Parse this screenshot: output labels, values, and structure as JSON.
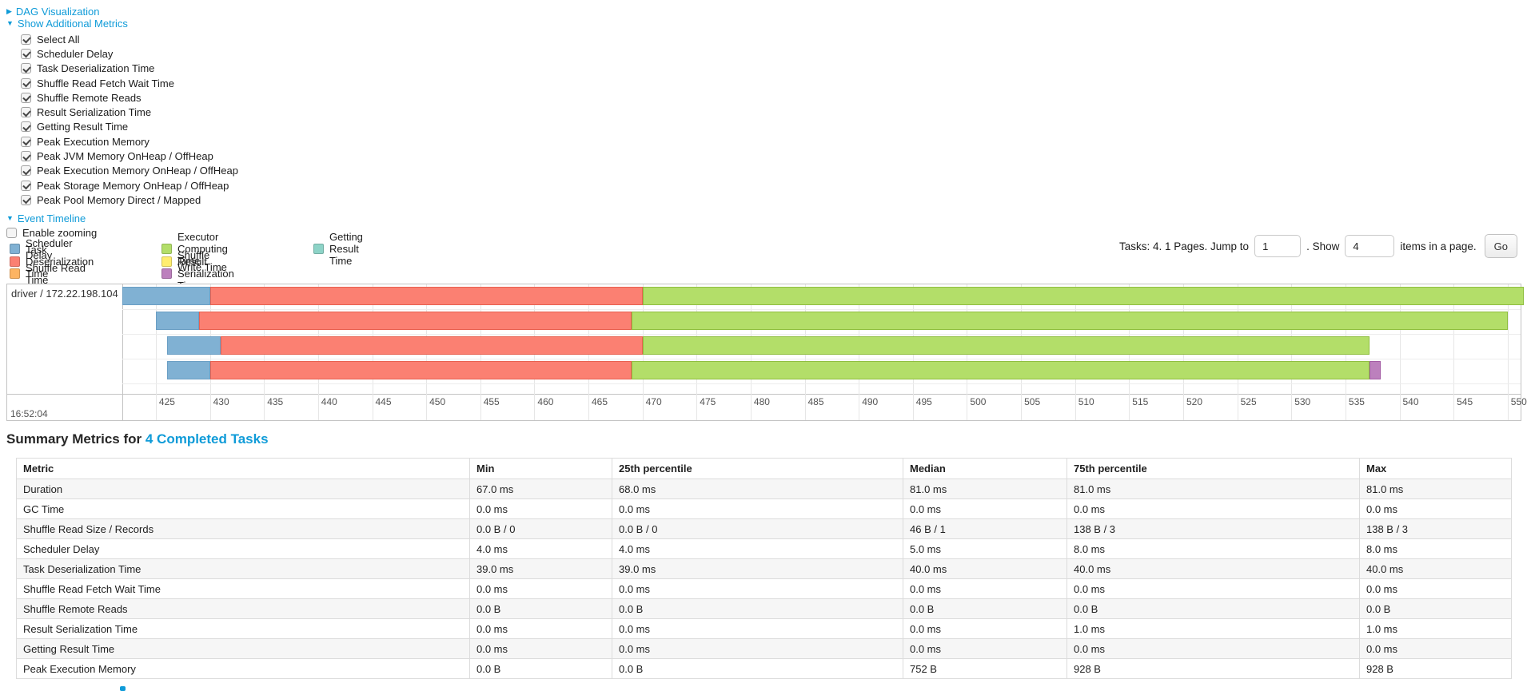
{
  "links": {
    "dag": "DAG Visualization",
    "metrics": "Show Additional Metrics",
    "event_timeline": "Event Timeline"
  },
  "icons": {
    "collapsed": "▶",
    "expanded": "▼"
  },
  "metric_checkboxes": [
    "Select All",
    "Scheduler Delay",
    "Task Deserialization Time",
    "Shuffle Read Fetch Wait Time",
    "Shuffle Remote Reads",
    "Result Serialization Time",
    "Getting Result Time",
    "Peak Execution Memory",
    "Peak JVM Memory OnHeap / OffHeap",
    "Peak Execution Memory OnHeap / OffHeap",
    "Peak Storage Memory OnHeap / OffHeap",
    "Peak Pool Memory Direct / Mapped"
  ],
  "enable_zooming_label": "Enable zooming",
  "pagination": {
    "prefix": "Tasks: 4. 1 Pages. Jump to",
    "jump_value": "1",
    "mid": ". Show",
    "show_value": "4",
    "suffix": "items in a page.",
    "go_label": "Go"
  },
  "colors": {
    "link": "#0f9bd8",
    "scheduler_delay": {
      "fill": "#80B1D3",
      "border": "#6A9EC4"
    },
    "task_deserialization": {
      "fill": "#FB8072",
      "border": "#E8604F"
    },
    "shuffle_read": {
      "fill": "#FDB462",
      "border": "#F09A3C"
    },
    "executor_computing": {
      "fill": "#B3DE69",
      "border": "#8FBE3F"
    },
    "shuffle_write": {
      "fill": "#FFED6F",
      "border": "#E8D84E"
    },
    "result_serialization": {
      "fill": "#BC80BD",
      "border": "#A35BA4"
    },
    "getting_result": {
      "fill": "#8DD3C7",
      "border": "#6BBFB0"
    }
  },
  "legend": [
    {
      "label": "Scheduler Delay",
      "key": "scheduler_delay"
    },
    {
      "label": "Task Deserialization Time",
      "key": "task_deserialization"
    },
    {
      "label": "Shuffle Read Time",
      "key": "shuffle_read"
    },
    {
      "label": "Executor Computing Time",
      "key": "executor_computing"
    },
    {
      "label": "Shuffle Write Time",
      "key": "shuffle_write"
    },
    {
      "label": "Result Serialization Time",
      "key": "result_serialization"
    },
    {
      "label": "Getting Result Time",
      "key": "getting_result"
    }
  ],
  "chart_data": {
    "type": "timeline",
    "title": "Event Timeline",
    "group_label": "driver / 172.22.198.104",
    "axis": {
      "min": 421.9,
      "max": 551.2,
      "tick_start": 425,
      "tick_step": 5,
      "tick_end": 550,
      "major_label": "16:52:04",
      "unit": "milliseconds after 16:52:04"
    },
    "tasks": [
      {
        "segments": [
          {
            "key": "scheduler_delay",
            "start": 421.9,
            "end": 430.0
          },
          {
            "key": "task_deserialization",
            "start": 430.0,
            "end": 470.0
          },
          {
            "key": "executor_computing",
            "start": 470.0,
            "end": 551.5
          }
        ]
      },
      {
        "segments": [
          {
            "key": "scheduler_delay",
            "start": 425.0,
            "end": 429.0
          },
          {
            "key": "task_deserialization",
            "start": 429.0,
            "end": 469.0
          },
          {
            "key": "executor_computing",
            "start": 469.0,
            "end": 550.0
          }
        ]
      },
      {
        "segments": [
          {
            "key": "scheduler_delay",
            "start": 426.0,
            "end": 431.0
          },
          {
            "key": "task_deserialization",
            "start": 431.0,
            "end": 470.0
          },
          {
            "key": "executor_computing",
            "start": 470.0,
            "end": 537.2
          }
        ]
      },
      {
        "segments": [
          {
            "key": "scheduler_delay",
            "start": 426.0,
            "end": 430.0
          },
          {
            "key": "task_deserialization",
            "start": 430.0,
            "end": 469.0
          },
          {
            "key": "executor_computing",
            "start": 469.0,
            "end": 537.2
          },
          {
            "key": "result_serialization",
            "start": 537.2,
            "end": 538.3
          }
        ]
      }
    ]
  },
  "summary": {
    "title_prefix": "Summary Metrics for",
    "title_link": "4 Completed Tasks",
    "table": {
      "headers": [
        "Metric",
        "Min",
        "25th percentile",
        "Median",
        "75th percentile",
        "Max"
      ],
      "rows": [
        {
          "metric": "Duration",
          "values": [
            "67.0 ms",
            "68.0 ms",
            "81.0 ms",
            "81.0 ms",
            "81.0 ms"
          ]
        },
        {
          "metric": "GC Time",
          "values": [
            "0.0 ms",
            "0.0 ms",
            "0.0 ms",
            "0.0 ms",
            "0.0 ms"
          ]
        },
        {
          "metric": "Shuffle Read Size / Records",
          "values": [
            "0.0 B / 0",
            "0.0 B / 0",
            "46 B / 1",
            "138 B / 3",
            "138 B / 3"
          ]
        },
        {
          "metric": "Scheduler Delay",
          "values": [
            "4.0 ms",
            "4.0 ms",
            "5.0 ms",
            "8.0 ms",
            "8.0 ms"
          ]
        },
        {
          "metric": "Task Deserialization Time",
          "values": [
            "39.0 ms",
            "39.0 ms",
            "40.0 ms",
            "40.0 ms",
            "40.0 ms"
          ]
        },
        {
          "metric": "Shuffle Read Fetch Wait Time",
          "values": [
            "0.0 ms",
            "0.0 ms",
            "0.0 ms",
            "0.0 ms",
            "0.0 ms"
          ]
        },
        {
          "metric": "Shuffle Remote Reads",
          "values": [
            "0.0 B",
            "0.0 B",
            "0.0 B",
            "0.0 B",
            "0.0 B"
          ]
        },
        {
          "metric": "Result Serialization Time",
          "values": [
            "0.0 ms",
            "0.0 ms",
            "0.0 ms",
            "1.0 ms",
            "1.0 ms"
          ]
        },
        {
          "metric": "Getting Result Time",
          "values": [
            "0.0 ms",
            "0.0 ms",
            "0.0 ms",
            "0.0 ms",
            "0.0 ms"
          ]
        },
        {
          "metric": "Peak Execution Memory",
          "values": [
            "0.0 B",
            "0.0 B",
            "752 B",
            "928 B",
            "928 B"
          ]
        }
      ]
    }
  }
}
